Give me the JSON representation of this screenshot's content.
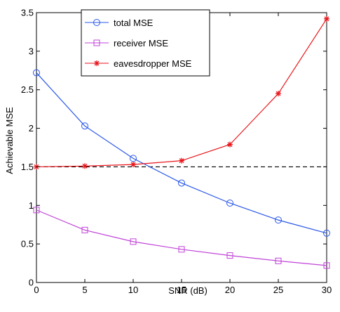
{
  "chart_data": {
    "type": "line",
    "x": [
      0,
      5,
      10,
      15,
      20,
      25,
      30
    ],
    "xlabel": "SNR (dB)",
    "ylabel": "Achievable MSE",
    "xlim": [
      0,
      30
    ],
    "ylim": [
      0,
      3.5
    ],
    "xticks": [
      "0",
      "5",
      "10",
      "15",
      "20",
      "25",
      "30"
    ],
    "yticks": [
      "0",
      "0.5",
      "1",
      "1.5",
      "2",
      "2.5",
      "3",
      "3.5"
    ],
    "grid": false,
    "legend_position": "top-center",
    "series": [
      {
        "name": "total MSE",
        "color": "#2957e8",
        "marker": "circle",
        "values": [
          2.72,
          2.03,
          1.61,
          1.29,
          1.03,
          0.81,
          0.64
        ]
      },
      {
        "name": "receiver MSE",
        "color": "#c043d8",
        "marker": "square",
        "values": [
          0.94,
          0.68,
          0.53,
          0.43,
          0.35,
          0.28,
          0.22
        ]
      },
      {
        "name": "eavesdropper MSE",
        "color": "#e8161b",
        "marker": "star",
        "values": [
          1.5,
          1.51,
          1.53,
          1.58,
          1.79,
          2.45,
          3.42
        ]
      }
    ],
    "reference_line": {
      "y": 1.5,
      "style": "dashed",
      "color": "#000000"
    }
  }
}
